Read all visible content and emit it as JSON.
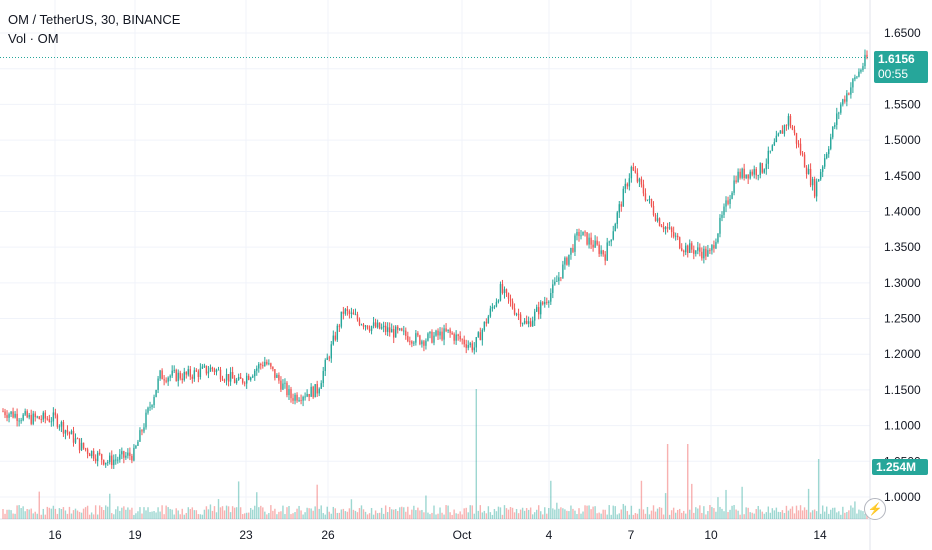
{
  "header": {
    "symbol": "OM / TetherUS, 30, BINANCE",
    "volume_label": "Vol · OM"
  },
  "price_tag": {
    "price": "1.6156",
    "countdown": "00:55"
  },
  "volume_tag": {
    "value": "1.254M"
  },
  "colors": {
    "up": "#26a69a",
    "down": "#ef5350",
    "grid": "#f0f3fa",
    "text": "#131722"
  },
  "icons": {
    "bolt": "lightning-bolt-icon"
  },
  "chart_data": {
    "type": "candlestick",
    "ylim": [
      1.0,
      1.66
    ],
    "y_ticks": [
      "1.6500",
      "1.6000",
      "1.5500",
      "1.5000",
      "1.4500",
      "1.4000",
      "1.3500",
      "1.3000",
      "1.2500",
      "1.2000",
      "1.1500",
      "1.1000",
      "1.0500",
      "1.0000"
    ],
    "x_tick_labels": [
      "16",
      "19",
      "23",
      "26",
      "Oct",
      "4",
      "7",
      "10",
      "14"
    ],
    "price_path": [
      {
        "t": "Sep 13",
        "v": 1.12
      },
      {
        "t": "Sep 14",
        "v": 1.11
      },
      {
        "t": "Sep 15",
        "v": 1.11
      },
      {
        "t": "Sep 16",
        "v": 1.07
      },
      {
        "t": "Sep 17",
        "v": 1.05
      },
      {
        "t": "Sep 18",
        "v": 1.06
      },
      {
        "t": "Sep 19",
        "v": 1.17
      },
      {
        "t": "Sep 20",
        "v": 1.17
      },
      {
        "t": "Sep 21",
        "v": 1.18
      },
      {
        "t": "Sep 22",
        "v": 1.16
      },
      {
        "t": "Sep 23",
        "v": 1.19
      },
      {
        "t": "Sep 24",
        "v": 1.14
      },
      {
        "t": "Sep 25",
        "v": 1.15
      },
      {
        "t": "Sep 26",
        "v": 1.26
      },
      {
        "t": "Sep 27",
        "v": 1.24
      },
      {
        "t": "Sep 28",
        "v": 1.23
      },
      {
        "t": "Sep 29",
        "v": 1.22
      },
      {
        "t": "Sep 30",
        "v": 1.23
      },
      {
        "t": "Oct 1",
        "v": 1.21
      },
      {
        "t": "Oct 2",
        "v": 1.29
      },
      {
        "t": "Oct 3",
        "v": 1.24
      },
      {
        "t": "Oct 4",
        "v": 1.29
      },
      {
        "t": "Oct 5",
        "v": 1.37
      },
      {
        "t": "Oct 6",
        "v": 1.34
      },
      {
        "t": "Oct 7",
        "v": 1.46
      },
      {
        "t": "Oct 8",
        "v": 1.39
      },
      {
        "t": "Oct 9",
        "v": 1.35
      },
      {
        "t": "Oct 10",
        "v": 1.34
      },
      {
        "t": "Oct 11",
        "v": 1.45
      },
      {
        "t": "Oct 12",
        "v": 1.46
      },
      {
        "t": "Oct 13",
        "v": 1.53
      },
      {
        "t": "Oct 14",
        "v": 1.43
      },
      {
        "t": "Oct 15",
        "v": 1.55
      },
      {
        "t": "Oct 16",
        "v": 1.6156
      }
    ],
    "current_price": 1.6156,
    "volume": {
      "unit": "M",
      "last": 1.254
    }
  }
}
